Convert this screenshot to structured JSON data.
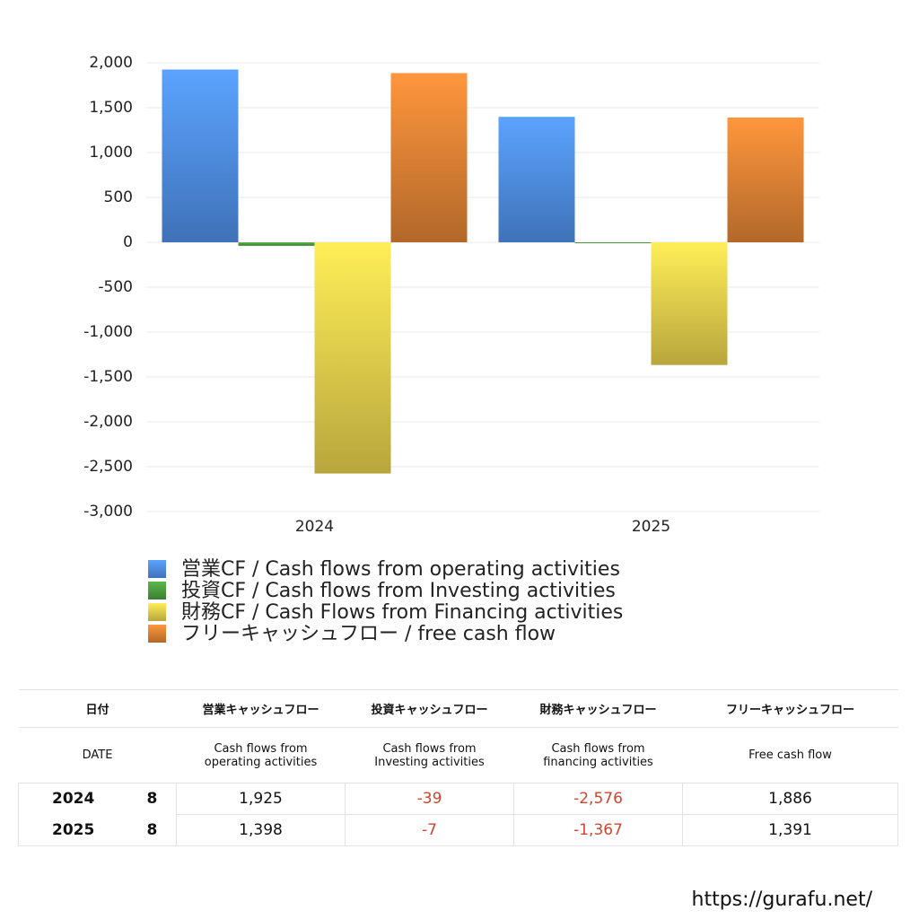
{
  "chart_data": {
    "type": "bar",
    "categories": [
      "2024",
      "2025"
    ],
    "series": [
      {
        "name": "営業CF / Cash flows from operating activities",
        "color": "#4f8ee6",
        "values": [
          1925,
          1398
        ]
      },
      {
        "name": "投資CF / Cash flows from Investing activities",
        "color": "#4e9e40",
        "values": [
          -39,
          -7
        ]
      },
      {
        "name": "財務CF / Cash Flows from Financing activities",
        "color": "#e6cf4c",
        "values": [
          -2576,
          -1367
        ]
      },
      {
        "name": "フリーキャッシュフロー / free cash flow",
        "color": "#de8234",
        "values": [
          1886,
          1391
        ]
      }
    ],
    "ylim": [
      -3000,
      2000
    ],
    "yticks": [
      {
        "value": 2000,
        "label": "2,000"
      },
      {
        "value": 1500,
        "label": "1,500"
      },
      {
        "value": 1000,
        "label": "1,000"
      },
      500,
      0,
      -500,
      {
        "value": -1000,
        "label": "-1,000"
      },
      {
        "value": -1500,
        "label": "-1,500"
      },
      {
        "value": -2000,
        "label": "-2,000"
      },
      {
        "value": -2500,
        "label": "-2,500"
      },
      {
        "value": -3000,
        "label": "-3,000"
      }
    ],
    "grid": true
  },
  "table": {
    "header": [
      "日付",
      "営業キャッシュフロー",
      "投資キャッシュフロー",
      "財務キャッシュフロー",
      "フリーキャッシュフロー"
    ],
    "subheader": [
      "DATE",
      "Cash flows from\noperating activities",
      "Cash flows from\nInvesting activities",
      "Cash flows from\nfinancing activities",
      "Free cash flow"
    ],
    "rows": [
      [
        "2024",
        "8",
        "1,925",
        "-39",
        "-2,576",
        "1,886"
      ],
      [
        "2025",
        "8",
        "1,398",
        "-7",
        "-1,367",
        "1,391"
      ]
    ]
  },
  "footer": "https://gurafu.net/"
}
